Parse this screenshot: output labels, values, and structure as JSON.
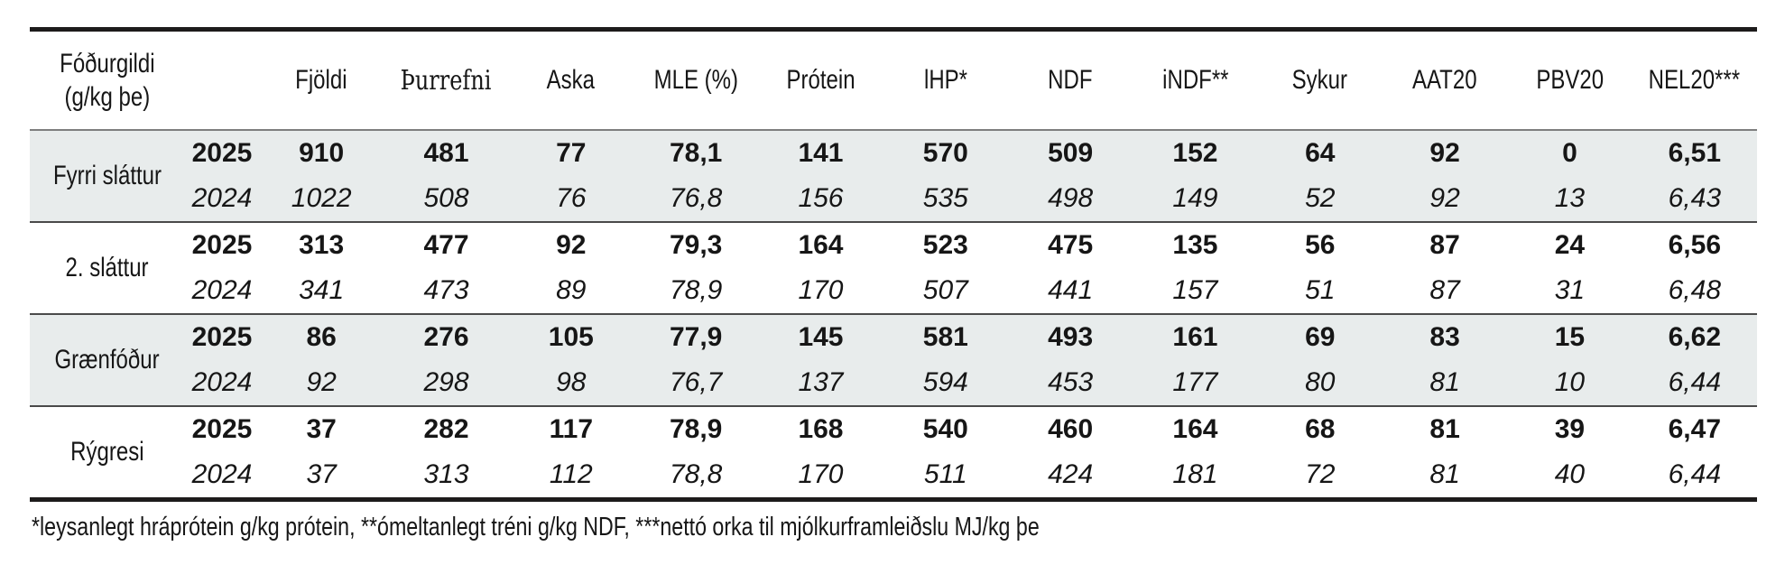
{
  "table": {
    "header": {
      "col0": {
        "line1": "Fóðurgildi",
        "line2": "(g/kg þe)"
      },
      "year_col": "",
      "columns": [
        "Fjöldi",
        "Þurrefni",
        "Aska",
        "MLE (%)",
        "Prótein",
        "lHP*",
        "NDF",
        "iNDF**",
        "Sykur",
        "AAT20",
        "PBV20",
        "NEL20***"
      ]
    },
    "groups": [
      {
        "label": "Fyrri sláttur",
        "shaded": true,
        "rows": [
          {
            "year": "2025",
            "style": "bold",
            "values": [
              "910",
              "481",
              "77",
              "78,1",
              "141",
              "570",
              "509",
              "152",
              "64",
              "92",
              "0",
              "6,51"
            ]
          },
          {
            "year": "2024",
            "style": "italic",
            "values": [
              "1022",
              "508",
              "76",
              "76,8",
              "156",
              "535",
              "498",
              "149",
              "52",
              "92",
              "13",
              "6,43"
            ]
          }
        ]
      },
      {
        "label": "2. sláttur",
        "shaded": false,
        "rows": [
          {
            "year": "2025",
            "style": "bold",
            "values": [
              "313",
              "477",
              "92",
              "79,3",
              "164",
              "523",
              "475",
              "135",
              "56",
              "87",
              "24",
              "6,56"
            ]
          },
          {
            "year": "2024",
            "style": "italic",
            "values": [
              "341",
              "473",
              "89",
              "78,9",
              "170",
              "507",
              "441",
              "157",
              "51",
              "87",
              "31",
              "6,48"
            ]
          }
        ]
      },
      {
        "label": "Grænfóður",
        "shaded": true,
        "rows": [
          {
            "year": "2025",
            "style": "bold",
            "values": [
              "86",
              "276",
              "105",
              "77,9",
              "145",
              "581",
              "493",
              "161",
              "69",
              "83",
              "15",
              "6,62"
            ]
          },
          {
            "year": "2024",
            "style": "italic",
            "values": [
              "92",
              "298",
              "98",
              "76,7",
              "137",
              "594",
              "453",
              "177",
              "80",
              "81",
              "10",
              "6,44"
            ]
          }
        ]
      },
      {
        "label": "Rýgresi",
        "shaded": false,
        "rows": [
          {
            "year": "2025",
            "style": "bold",
            "values": [
              "37",
              "282",
              "117",
              "78,9",
              "168",
              "540",
              "460",
              "164",
              "68",
              "81",
              "39",
              "6,47"
            ]
          },
          {
            "year": "2024",
            "style": "italic",
            "values": [
              "37",
              "313",
              "112",
              "78,8",
              "170",
              "511",
              "424",
              "181",
              "72",
              "81",
              "40",
              "6,44"
            ]
          }
        ]
      }
    ],
    "footnote": "*leysanlegt hráprótein g/kg prótein, **ómeltanlegt tréni g/kg NDF, ***nettó orka til mjólkurframleiðslu MJ/kg þe"
  },
  "colors": {
    "shaded_row_bg": "#e8ecec",
    "thick_border": "#1d1b1b",
    "header_rule": "#7e7e7e",
    "group_rule": "#4a4a4a",
    "text": "#161616"
  }
}
